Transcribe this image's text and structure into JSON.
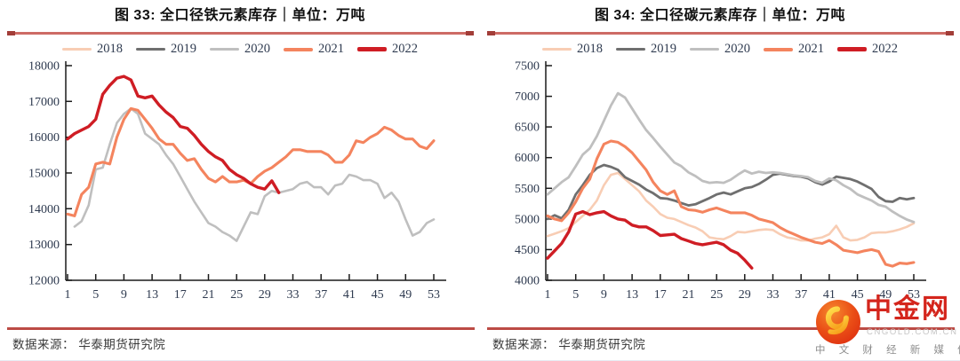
{
  "footer": {
    "left_source": "数据来源： 华泰期货研究院",
    "right_source": "数据来源： 华泰期货研究院"
  },
  "watermark": {
    "brand": "中金网",
    "domain": "CNGOLD.COM.CN",
    "tagline": "中 文 财 经 新 媒 体"
  },
  "palette": {
    "rule": "#CD6B65",
    "rule_tip": "#A23D38",
    "footer_rule": "#BC4B45",
    "axis_text": "#2E3A4F",
    "axis_line": "#1A1A1A",
    "brand_red": "#D4251C"
  },
  "chart_data": [
    {
      "type": "line",
      "title": "图 33: 全口径铁元素库存｜单位：万吨",
      "xlabel": "",
      "ylabel": "",
      "xlim": [
        1,
        53
      ],
      "ylim": [
        12000,
        18000
      ],
      "yticks": [
        18000,
        17000,
        16000,
        15000,
        14000,
        13000,
        12000
      ],
      "x_label_ticks": [
        1,
        5,
        9,
        13,
        17,
        21,
        25,
        29,
        33,
        37,
        41,
        45,
        49,
        53
      ],
      "grid": false,
      "legend_position": "top",
      "legend": [
        {
          "label": "2018",
          "color": "#F8CDB4",
          "thickness": 3.2
        },
        {
          "label": "2019",
          "color": "#6F6F6F",
          "thickness": 3.2
        },
        {
          "label": "2020",
          "color": "#BFBFBF",
          "thickness": 3.2
        },
        {
          "label": "2021",
          "color": "#F4845E",
          "thickness": 4
        },
        {
          "label": "2022",
          "color": "#CF1D24",
          "thickness": 4.5
        }
      ],
      "series": [
        {
          "name": "2020",
          "color": "#BFBFBF",
          "thickness": 2.6,
          "start_week": 2,
          "values": [
            13500,
            13650,
            14100,
            15100,
            15150,
            15800,
            16400,
            16650,
            16800,
            16650,
            16100,
            15950,
            15800,
            15500,
            15250,
            14900,
            14550,
            14200,
            13900,
            13600,
            13500,
            13350,
            13250,
            13100,
            13500,
            13900,
            13850,
            14350,
            14500,
            14450,
            14500,
            14550,
            14700,
            14750,
            14600,
            14600,
            14400,
            14650,
            14700,
            14950,
            14900,
            14800,
            14800,
            14700,
            14300,
            14450,
            14200,
            13700,
            13250,
            13350,
            13600,
            13700
          ]
        },
        {
          "name": "2021",
          "color": "#F4845E",
          "thickness": 3.1,
          "start_week": 1,
          "values": [
            13850,
            13800,
            14400,
            14600,
            15250,
            15300,
            15250,
            16000,
            16500,
            16800,
            16750,
            16500,
            16250,
            15950,
            15800,
            15800,
            15550,
            15350,
            15400,
            15100,
            14850,
            14750,
            14900,
            14750,
            14750,
            14800,
            14700,
            14900,
            15050,
            15150,
            15300,
            15450,
            15650,
            15650,
            15600,
            15600,
            15600,
            15500,
            15300,
            15300,
            15500,
            15900,
            15850,
            16000,
            16100,
            16280,
            16200,
            16050,
            15950,
            15950,
            15750,
            15680,
            15900
          ]
        },
        {
          "name": "2022",
          "color": "#CF1D24",
          "thickness": 3.4,
          "start_week": 1,
          "values": [
            15950,
            16100,
            16200,
            16300,
            16500,
            17200,
            17450,
            17650,
            17700,
            17600,
            17150,
            17100,
            17150,
            16900,
            16700,
            16550,
            16300,
            16250,
            16050,
            15800,
            15600,
            15450,
            15350,
            15100,
            14950,
            14850,
            14700,
            14600,
            14550,
            14780,
            14450
          ]
        }
      ]
    },
    {
      "type": "line",
      "title": "图 34: 全口径碳元素库存｜单位：万吨",
      "xlabel": "",
      "ylabel": "",
      "xlim": [
        1,
        53
      ],
      "ylim": [
        4000,
        7500
      ],
      "yticks": [
        7500,
        7000,
        6500,
        6000,
        5500,
        5000,
        4500,
        4000
      ],
      "x_label_ticks": [
        1,
        5,
        9,
        13,
        17,
        21,
        25,
        29,
        33,
        37,
        41,
        45,
        49,
        53
      ],
      "grid": false,
      "legend_position": "top",
      "legend": [
        {
          "label": "2018",
          "color": "#F8CDB4",
          "thickness": 3.2
        },
        {
          "label": "2019",
          "color": "#6F6F6F",
          "thickness": 3.2
        },
        {
          "label": "2020",
          "color": "#BFBFBF",
          "thickness": 3.2
        },
        {
          "label": "2021",
          "color": "#F4845E",
          "thickness": 4
        },
        {
          "label": "2022",
          "color": "#CF1D24",
          "thickness": 4.5
        }
      ],
      "series": [
        {
          "name": "2018",
          "color": "#F8CDB4",
          "thickness": 2.6,
          "start_week": 1,
          "values": [
            4720,
            4760,
            4800,
            4850,
            4950,
            5050,
            5150,
            5300,
            5550,
            5720,
            5750,
            5650,
            5550,
            5450,
            5300,
            5200,
            5080,
            5020,
            5000,
            4950,
            4900,
            4860,
            4800,
            4700,
            4680,
            4670,
            4720,
            4790,
            4780,
            4800,
            4820,
            4830,
            4820,
            4750,
            4700,
            4680,
            4650,
            4650,
            4680,
            4700,
            4750,
            4890,
            4700,
            4650,
            4660,
            4700,
            4770,
            4780,
            4780,
            4800,
            4830,
            4870,
            4930
          ]
        },
        {
          "name": "2019",
          "color": "#6F6F6F",
          "thickness": 2.8,
          "start_week": 1,
          "values": [
            5000,
            5060,
            5010,
            5150,
            5400,
            5550,
            5720,
            5830,
            5880,
            5850,
            5800,
            5680,
            5620,
            5560,
            5480,
            5420,
            5340,
            5330,
            5300,
            5260,
            5220,
            5240,
            5290,
            5340,
            5400,
            5430,
            5400,
            5450,
            5500,
            5520,
            5570,
            5640,
            5720,
            5740,
            5720,
            5700,
            5690,
            5660,
            5600,
            5560,
            5610,
            5690,
            5670,
            5650,
            5610,
            5550,
            5490,
            5360,
            5290,
            5280,
            5340,
            5320,
            5340
          ]
        },
        {
          "name": "2020",
          "color": "#BFBFBF",
          "thickness": 2.8,
          "start_week": 1,
          "values": [
            5400,
            5500,
            5600,
            5680,
            5860,
            6050,
            6150,
            6350,
            6600,
            6850,
            7050,
            6980,
            6800,
            6620,
            6450,
            6320,
            6180,
            6050,
            5920,
            5860,
            5760,
            5700,
            5620,
            5590,
            5600,
            5590,
            5640,
            5720,
            5790,
            5740,
            5770,
            5750,
            5760,
            5750,
            5730,
            5710,
            5700,
            5680,
            5620,
            5590,
            5660,
            5630,
            5550,
            5490,
            5400,
            5350,
            5300,
            5230,
            5200,
            5120,
            5050,
            4990,
            4950
          ]
        },
        {
          "name": "2021",
          "color": "#F4845E",
          "thickness": 3.1,
          "start_week": 1,
          "values": [
            5050,
            5000,
            4970,
            5100,
            5280,
            5500,
            5650,
            5980,
            6220,
            6270,
            6250,
            6180,
            6080,
            5940,
            5800,
            5600,
            5460,
            5400,
            5460,
            5200,
            5150,
            5140,
            5110,
            5150,
            5180,
            5140,
            5100,
            5100,
            5100,
            5060,
            5000,
            4970,
            4940,
            4860,
            4800,
            4750,
            4700,
            4660,
            4620,
            4600,
            4650,
            4580,
            4490,
            4470,
            4450,
            4480,
            4500,
            4470,
            4260,
            4230,
            4280,
            4270,
            4290
          ]
        },
        {
          "name": "2022",
          "color": "#CF1D24",
          "thickness": 3.4,
          "start_week": 1,
          "values": [
            4360,
            4480,
            4600,
            4790,
            5080,
            5120,
            5070,
            5100,
            5120,
            5050,
            5000,
            4980,
            4900,
            4870,
            4870,
            4810,
            4730,
            4740,
            4750,
            4680,
            4640,
            4600,
            4580,
            4600,
            4620,
            4580,
            4490,
            4440,
            4330,
            4200
          ]
        }
      ]
    }
  ]
}
